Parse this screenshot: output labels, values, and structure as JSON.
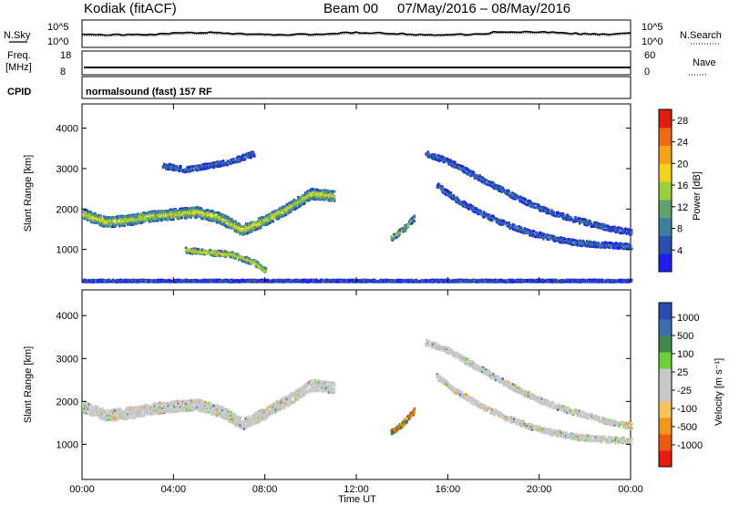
{
  "header": {
    "station": "Kodiak (fitACF)",
    "beam": "Beam 00",
    "dates": "07/May/2016 – 08/May/2016"
  },
  "noise_panel": {
    "left_label": "N.Sky",
    "right_label": "N.Search",
    "ticks": [
      "10^5",
      "10^0"
    ]
  },
  "freq_panel": {
    "left_label_1": "Freq.",
    "left_label_2": "[MHz]",
    "right_label": "Nave",
    "left_ticks": [
      "18",
      "8"
    ],
    "right_ticks": [
      "60",
      "0"
    ]
  },
  "cpid_panel": {
    "label": "CPID",
    "text": "normalsound (fast) 157 RF"
  },
  "colors": {
    "power_scale": [
      "#1e1ef0",
      "#2a4fb0",
      "#3d7fa0",
      "#5fa26a",
      "#9ccf3c",
      "#f2d21a",
      "#f5a31a",
      "#ef6a12",
      "#e01d10"
    ],
    "velocity_scale": [
      "#e81a12",
      "#ec5a14",
      "#f3961c",
      "#f6c25a",
      "#c8c8c8",
      "#c8c8c8",
      "#6fcf3a",
      "#3f8a4a",
      "#3c6fb0",
      "#2a4bb0"
    ]
  },
  "chart_data": [
    {
      "type": "heatmap",
      "title": "",
      "xlabel": "Time UT",
      "ylabel": "Slant Range [km]",
      "x_ticks": [
        "00:00",
        "04:00",
        "08:00",
        "12:00",
        "16:00",
        "20:00",
        "00:00"
      ],
      "xlim_hours": [
        0,
        24
      ],
      "ylim_km": [
        180,
        4600
      ],
      "y_ticks": [
        "1000",
        "2000",
        "3000",
        "4000"
      ],
      "colorbar": {
        "label": "Power [dB]",
        "ticks": [
          "4",
          "8",
          "12",
          "16",
          "20",
          "24",
          "28"
        ],
        "range": [
          0,
          30
        ]
      },
      "features": [
        {
          "name": "main band",
          "x_hours": [
            0,
            1,
            2,
            3,
            4,
            5,
            6,
            7,
            8,
            9,
            10,
            11
          ],
          "range_km": [
            1900,
            1700,
            1750,
            1850,
            1900,
            1950,
            1800,
            1500,
            1750,
            2050,
            2400,
            2350
          ],
          "value_db": 18
        },
        {
          "name": "upper band",
          "x_hours": [
            3.5,
            4.5,
            5.5,
            6.5,
            7.5
          ],
          "range_km": [
            3100,
            3000,
            3100,
            3200,
            3400
          ],
          "value_db": 8
        },
        {
          "name": "lower patch",
          "x_hours": [
            4.5,
            5.5,
            6.5,
            7.5,
            8
          ],
          "range_km": [
            1000,
            950,
            900,
            700,
            500
          ],
          "value_db": 20
        },
        {
          "name": "patch 13-15 UT",
          "x_hours": [
            13.5,
            14,
            14.5
          ],
          "range_km": [
            1300,
            1500,
            1800
          ],
          "value_db": 16
        },
        {
          "name": "arc 1",
          "x_hours": [
            15,
            16,
            17,
            18,
            19,
            20,
            21,
            22,
            23,
            24
          ],
          "range_km": [
            3400,
            3200,
            2900,
            2600,
            2300,
            2050,
            1850,
            1700,
            1550,
            1450
          ],
          "value_db": 8
        },
        {
          "name": "arc 2",
          "x_hours": [
            15.5,
            16.5,
            17.5,
            18.5,
            19.5,
            20.5,
            21.5,
            22.5,
            24
          ],
          "range_km": [
            2600,
            2200,
            1900,
            1650,
            1450,
            1300,
            1200,
            1150,
            1100
          ],
          "value_db": 8
        },
        {
          "name": "near range",
          "x_hours": [
            0,
            6,
            12,
            18,
            24
          ],
          "range_km": [
            250,
            250,
            250,
            250,
            250
          ],
          "value_db": 6
        }
      ]
    },
    {
      "type": "heatmap",
      "title": "",
      "xlabel": "Time UT",
      "ylabel": "Slant Range [km]",
      "x_ticks": [
        "00:00",
        "04:00",
        "08:00",
        "12:00",
        "16:00",
        "20:00",
        "00:00"
      ],
      "xlim_hours": [
        0,
        24
      ],
      "ylim_km": [
        180,
        4600
      ],
      "y_ticks": [
        "1000",
        "2000",
        "3000",
        "4000"
      ],
      "colorbar": {
        "label": "Velocity [m s⁻¹]",
        "ticks": [
          "1000",
          "500",
          "100",
          "25",
          "-25",
          "-100",
          "-500",
          "-1000"
        ]
      },
      "features": [
        {
          "name": "main band",
          "x_hours": [
            0,
            1,
            2,
            3,
            4,
            5,
            6,
            7,
            8,
            9,
            10,
            11
          ],
          "range_km": [
            1900,
            1700,
            1750,
            1850,
            1900,
            1950,
            1800,
            1500,
            1750,
            2050,
            2400,
            2350
          ],
          "value_ms": 0
        },
        {
          "name": "patch 13-15 UT",
          "x_hours": [
            13.5,
            14,
            14.5
          ],
          "range_km": [
            1300,
            1500,
            1800
          ],
          "value_ms": -300
        },
        {
          "name": "arc 1",
          "x_hours": [
            15,
            16,
            17,
            18,
            19,
            20,
            21,
            22,
            23,
            24
          ],
          "range_km": [
            3400,
            3200,
            2900,
            2600,
            2300,
            2050,
            1850,
            1700,
            1550,
            1450
          ],
          "value_ms": 0
        },
        {
          "name": "arc 2",
          "x_hours": [
            15.5,
            16.5,
            17.5,
            18.5,
            19.5,
            20.5,
            21.5,
            22.5,
            24
          ],
          "range_km": [
            2600,
            2200,
            1900,
            1650,
            1450,
            1300,
            1200,
            1150,
            1100
          ],
          "value_ms": 0
        }
      ]
    }
  ]
}
